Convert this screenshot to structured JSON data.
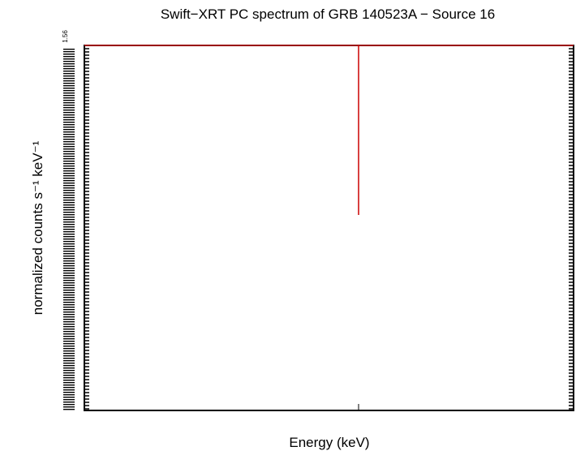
{
  "chart_data": {
    "type": "line",
    "title": "Swift−XRT PC spectrum of GRB 140523A − Source 16",
    "xlabel": "Energy (keV)",
    "ylabel": "normalized counts s⁻¹ keV⁻¹",
    "y_top_tick_label": "1.56",
    "series": [
      {
        "kind": "model",
        "color": "#cc0000"
      },
      {
        "kind": "data-point",
        "color": "#cc0000",
        "x": 1.0
      }
    ],
    "grid": false
  }
}
